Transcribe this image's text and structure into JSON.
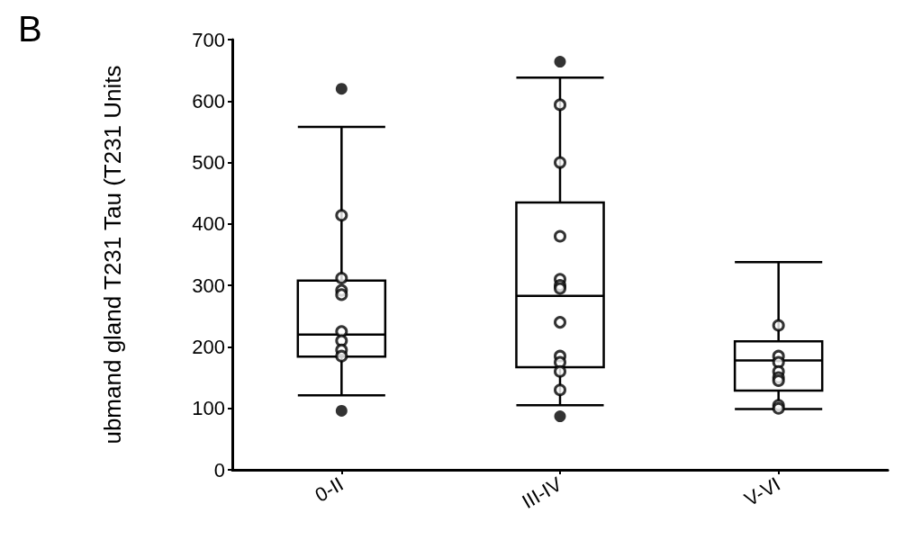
{
  "chart_data": {
    "type": "box",
    "ylabel": "ubmand gland T231 Tau (T231 Units",
    "annotations": [
      "B"
    ],
    "categories": [
      "0-II",
      "III-IV",
      "V-VI"
    ],
    "boxes": [
      {
        "low": 121,
        "q1": 184,
        "median": 220,
        "q3": 308,
        "high": 558,
        "outliers": [
          620,
          96
        ]
      },
      {
        "low": 105,
        "q1": 167,
        "median": 283,
        "q3": 435,
        "high": 638,
        "outliers": [
          664,
          87
        ]
      },
      {
        "low": 99,
        "q1": 129,
        "median": 178,
        "q3": 209,
        "high": 338
      }
    ],
    "series": [
      {
        "type": "scatter",
        "color": "#000000",
        "x": [
          "0-II",
          "0-II",
          "0-II",
          "0-II",
          "0-II",
          "0-II",
          "0-II",
          "0-II",
          "III-IV",
          "III-IV",
          "III-IV",
          "III-IV",
          "III-IV",
          "III-IV",
          "III-IV",
          "III-IV",
          "III-IV",
          "III-IV",
          "III-IV",
          "V-VI",
          "V-VI",
          "V-VI",
          "V-VI",
          "V-VI",
          "V-VI",
          "V-VI",
          "V-VI"
        ],
        "values": [
          414,
          312,
          292,
          285,
          225,
          210,
          195,
          185,
          594,
          500,
          380,
          310,
          300,
          295,
          240,
          185,
          175,
          160,
          130,
          235,
          185,
          175,
          160,
          150,
          145,
          105,
          100
        ]
      }
    ],
    "ylim": [
      0,
      700
    ],
    "yticks": [
      0,
      100,
      200,
      300,
      400,
      500,
      600,
      700
    ],
    "grid": false,
    "marker": "circle"
  }
}
